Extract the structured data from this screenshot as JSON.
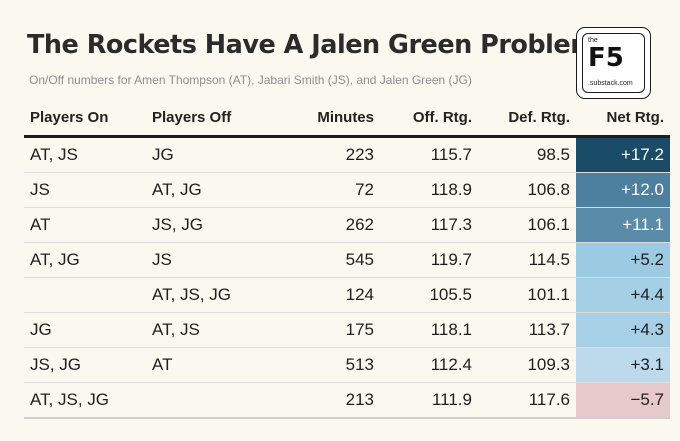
{
  "header": {
    "title": "The Rockets Have A Jalen Green Problem",
    "subtitle": "On/Off numbers for Amen Thompson (AT), Jabari Smith (JS), and Jalen Green (JG)"
  },
  "logo": {
    "the": "the",
    "mark": "F5",
    "sub": ".substack.com"
  },
  "table": {
    "columns": [
      "Players On",
      "Players Off",
      "Minutes",
      "Off. Rtg.",
      "Def. Rtg.",
      "Net Rtg."
    ],
    "rows": [
      {
        "on": "AT, JS",
        "off": "JG",
        "minutes": "223",
        "ortg": "115.7",
        "drtg": "98.5",
        "net": "+17.2",
        "bg": "#1b4c67",
        "fg": "#ffffff"
      },
      {
        "on": "JS",
        "off": "AT, JG",
        "minutes": "72",
        "ortg": "118.9",
        "drtg": "106.8",
        "net": "+12.0",
        "bg": "#4d7f9e",
        "fg": "#ffffff"
      },
      {
        "on": "AT",
        "off": "JS, JG",
        "minutes": "262",
        "ortg": "117.3",
        "drtg": "106.1",
        "net": "+11.1",
        "bg": "#5a8ba9",
        "fg": "#ffffff"
      },
      {
        "on": "AT, JG",
        "off": "JS",
        "minutes": "545",
        "ortg": "119.7",
        "drtg": "114.5",
        "net": "+5.2",
        "bg": "#9ccae2",
        "fg": "#1f1f1f"
      },
      {
        "on": "",
        "off": "AT, JS, JG",
        "minutes": "124",
        "ortg": "105.5",
        "drtg": "101.1",
        "net": "+4.4",
        "bg": "#a4cfe5",
        "fg": "#1f1f1f"
      },
      {
        "on": "JG",
        "off": "AT, JS",
        "minutes": "175",
        "ortg": "118.1",
        "drtg": "113.7",
        "net": "+4.3",
        "bg": "#a7d0e6",
        "fg": "#1f1f1f"
      },
      {
        "on": "JS, JG",
        "off": "AT",
        "minutes": "513",
        "ortg": "112.4",
        "drtg": "109.3",
        "net": "+3.1",
        "bg": "#bcdaeb",
        "fg": "#1f1f1f"
      },
      {
        "on": "AT, JS, JG",
        "off": "",
        "minutes": "213",
        "ortg": "111.9",
        "drtg": "117.6",
        "net": "−5.7",
        "bg": "#e7c9cb",
        "fg": "#1f1f1f"
      }
    ]
  }
}
